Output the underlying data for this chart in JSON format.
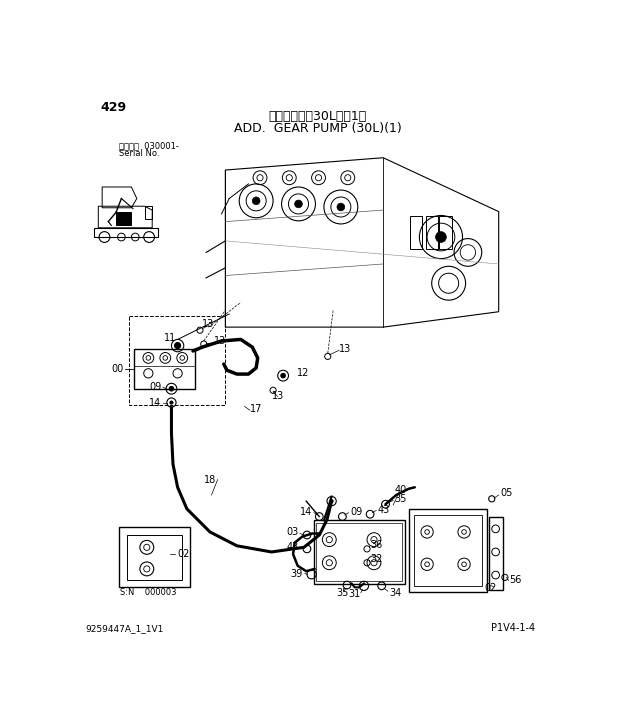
{
  "page_number": "429",
  "title_japanese": "追加ギンプ（30L）（1）",
  "title_english": "ADD.  GEAR PUMP (30L)(1)",
  "serial_line1": "適用号機  030001-",
  "serial_line2": "Serial No.",
  "doc_number": "9259447A_1_1V1",
  "page_ref": "P1V4-1-4",
  "background_color": "#ffffff",
  "text_color": "#000000",
  "line_color": "#000000",
  "fig_width": 6.2,
  "fig_height": 7.24,
  "dpi": 100
}
